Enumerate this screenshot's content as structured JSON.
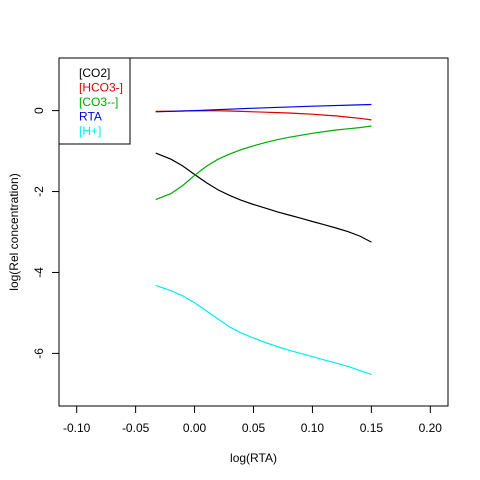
{
  "chart_data": {
    "type": "line",
    "title": "",
    "xlabel": "log(RTA)",
    "ylabel": "log(Rel concentration)",
    "xlim": [
      -0.115,
      0.215
    ],
    "ylim": [
      -7.3,
      1.3
    ],
    "x_ticks": [
      -0.1,
      -0.05,
      0.0,
      0.05,
      0.1,
      0.15,
      0.2
    ],
    "x_tick_labels": [
      "-0.10",
      "-0.05",
      "0.00",
      "0.05",
      "0.10",
      "0.15",
      "0.20"
    ],
    "y_ticks": [
      0,
      -2,
      -4,
      -6
    ],
    "y_tick_labels": [
      "0",
      "-2",
      "-4",
      "-6"
    ],
    "legend_position": "top-left",
    "grid": false,
    "series": [
      {
        "name": "[CO2]",
        "color": "#000000",
        "x": [
          -0.033,
          -0.02,
          -0.01,
          0.0,
          0.01,
          0.02,
          0.03,
          0.04,
          0.05,
          0.06,
          0.07,
          0.08,
          0.09,
          0.1,
          0.11,
          0.12,
          0.13,
          0.14,
          0.15
        ],
        "y": [
          -1.05,
          -1.2,
          -1.37,
          -1.58,
          -1.78,
          -1.96,
          -2.1,
          -2.22,
          -2.32,
          -2.41,
          -2.5,
          -2.58,
          -2.66,
          -2.74,
          -2.82,
          -2.9,
          -2.99,
          -3.1,
          -3.25
        ]
      },
      {
        "name": "[HCO3-]",
        "color": "#dd0000",
        "x": [
          -0.033,
          -0.02,
          -0.01,
          0.0,
          0.01,
          0.02,
          0.03,
          0.04,
          0.05,
          0.06,
          0.07,
          0.08,
          0.09,
          0.1,
          0.11,
          0.12,
          0.13,
          0.14,
          0.15
        ],
        "y": [
          -0.02,
          -0.015,
          -0.01,
          -0.005,
          0.0,
          -0.005,
          -0.01,
          -0.02,
          -0.03,
          -0.04,
          -0.05,
          -0.06,
          -0.075,
          -0.09,
          -0.11,
          -0.13,
          -0.16,
          -0.19,
          -0.23
        ]
      },
      {
        "name": "[CO3--]",
        "color": "#00aa00",
        "x": [
          -0.033,
          -0.02,
          -0.01,
          0.0,
          0.01,
          0.02,
          0.03,
          0.04,
          0.05,
          0.06,
          0.07,
          0.08,
          0.09,
          0.1,
          0.11,
          0.12,
          0.13,
          0.14,
          0.15
        ],
        "y": [
          -2.2,
          -2.05,
          -1.85,
          -1.6,
          -1.38,
          -1.2,
          -1.07,
          -0.96,
          -0.87,
          -0.79,
          -0.72,
          -0.66,
          -0.61,
          -0.56,
          -0.52,
          -0.48,
          -0.45,
          -0.42,
          -0.38
        ]
      },
      {
        "name": "RTA",
        "color": "#0000ee",
        "x": [
          -0.033,
          0.0,
          0.05,
          0.1,
          0.15
        ],
        "y": [
          -0.03,
          0.0,
          0.06,
          0.11,
          0.15
        ]
      },
      {
        "name": "[H+]",
        "color": "#00eeee",
        "x": [
          -0.033,
          -0.02,
          -0.01,
          0.0,
          0.01,
          0.02,
          0.03,
          0.04,
          0.05,
          0.06,
          0.07,
          0.08,
          0.09,
          0.1,
          0.11,
          0.12,
          0.13,
          0.14,
          0.15
        ],
        "y": [
          -4.32,
          -4.45,
          -4.58,
          -4.75,
          -4.95,
          -5.15,
          -5.35,
          -5.5,
          -5.62,
          -5.73,
          -5.83,
          -5.92,
          -6.0,
          -6.08,
          -6.16,
          -6.24,
          -6.32,
          -6.42,
          -6.52
        ]
      }
    ]
  }
}
